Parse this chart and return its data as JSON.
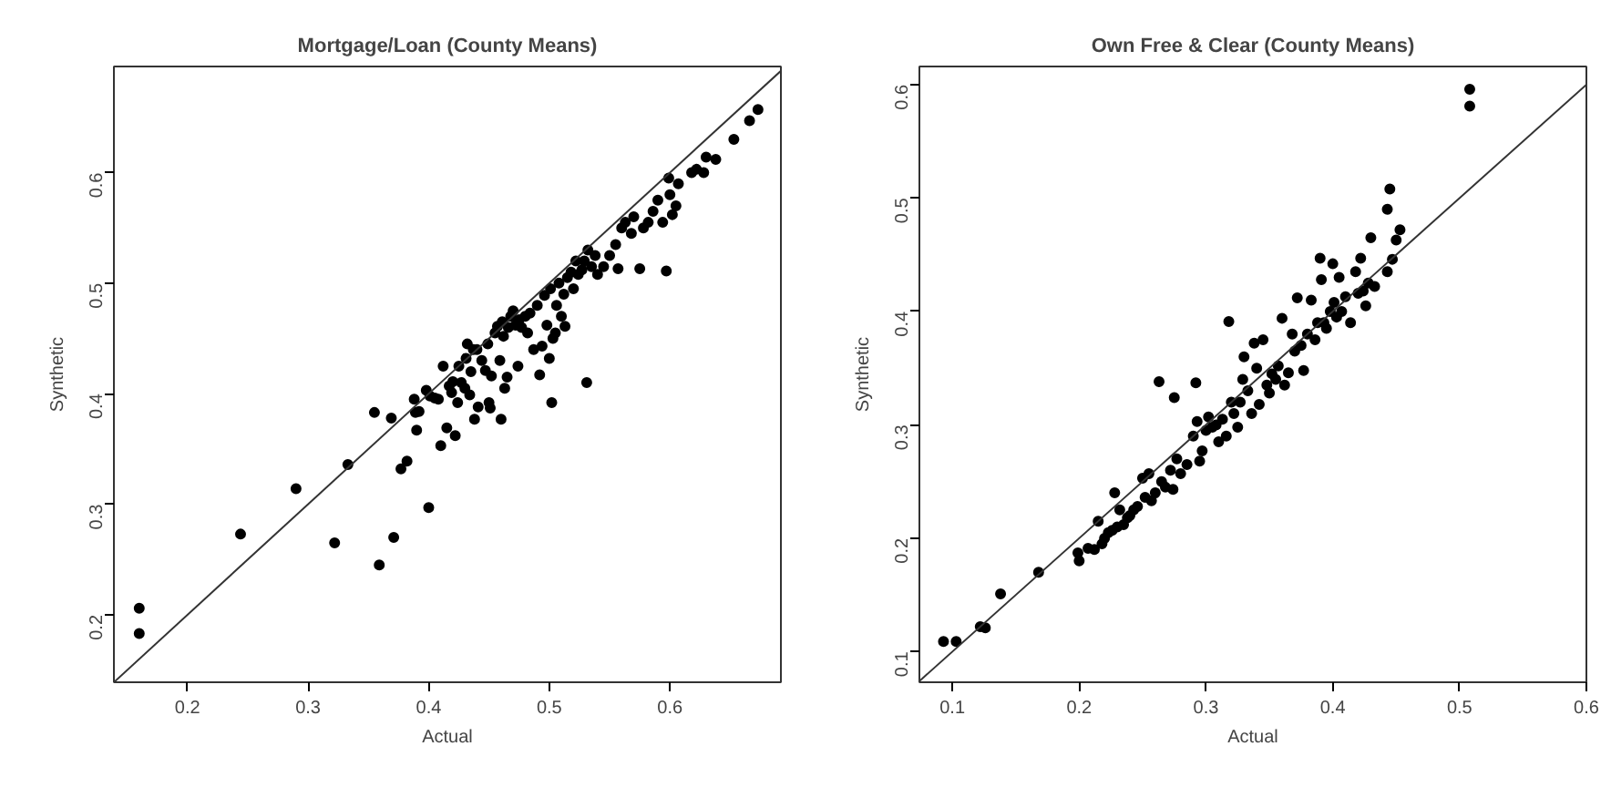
{
  "chart_data": [
    {
      "type": "scatter",
      "title": "Mortgage/Loan (County Means)",
      "xlabel": "Actual",
      "ylabel": "Synthetic",
      "xlim": [
        0.139,
        0.692
      ],
      "ylim": [
        0.139,
        0.696
      ],
      "xticks": [
        0.2,
        0.3,
        0.4,
        0.5,
        0.6
      ],
      "yticks": [
        0.2,
        0.3,
        0.4,
        0.5,
        0.6
      ],
      "grid": false,
      "series": [
        {
          "type": "scatter",
          "marker": "circle",
          "color": "#000000",
          "x": [
            0.16,
            0.16,
            0.244,
            0.29,
            0.322,
            0.333,
            0.355,
            0.359,
            0.369,
            0.371,
            0.377,
            0.382,
            0.388,
            0.389,
            0.39,
            0.392,
            0.398,
            0.4,
            0.401,
            0.405,
            0.408,
            0.41,
            0.412,
            0.415,
            0.417,
            0.419,
            0.42,
            0.422,
            0.424,
            0.425,
            0.427,
            0.43,
            0.431,
            0.432,
            0.434,
            0.435,
            0.437,
            0.438,
            0.44,
            0.441,
            0.444,
            0.447,
            0.449,
            0.45,
            0.451,
            0.452,
            0.455,
            0.457,
            0.459,
            0.46,
            0.461,
            0.462,
            0.463,
            0.465,
            0.466,
            0.468,
            0.47,
            0.472,
            0.474,
            0.475,
            0.477,
            0.48,
            0.482,
            0.484,
            0.487,
            0.49,
            0.492,
            0.494,
            0.496,
            0.498,
            0.5,
            0.501,
            0.502,
            0.503,
            0.505,
            0.506,
            0.508,
            0.51,
            0.512,
            0.513,
            0.515,
            0.518,
            0.52,
            0.522,
            0.524,
            0.527,
            0.529,
            0.531,
            0.532,
            0.535,
            0.538,
            0.54,
            0.545,
            0.55,
            0.555,
            0.557,
            0.56,
            0.563,
            0.568,
            0.57,
            0.575,
            0.578,
            0.582,
            0.586,
            0.59,
            0.594,
            0.597,
            0.599,
            0.6,
            0.602,
            0.605,
            0.607,
            0.618,
            0.622,
            0.628,
            0.63,
            0.638,
            0.653,
            0.666,
            0.673
          ],
          "values": [
            0.206,
            0.183,
            0.273,
            0.314,
            0.265,
            0.336,
            0.383,
            0.245,
            0.378,
            0.27,
            0.332,
            0.339,
            0.395,
            0.383,
            0.367,
            0.384,
            0.403,
            0.297,
            0.398,
            0.396,
            0.395,
            0.353,
            0.425,
            0.369,
            0.407,
            0.401,
            0.411,
            0.362,
            0.392,
            0.425,
            0.41,
            0.405,
            0.432,
            0.445,
            0.399,
            0.42,
            0.44,
            0.377,
            0.44,
            0.388,
            0.43,
            0.421,
            0.445,
            0.392,
            0.387,
            0.416,
            0.455,
            0.461,
            0.43,
            0.377,
            0.465,
            0.452,
            0.405,
            0.415,
            0.46,
            0.47,
            0.475,
            0.462,
            0.425,
            0.467,
            0.46,
            0.47,
            0.455,
            0.473,
            0.44,
            0.48,
            0.417,
            0.443,
            0.489,
            0.462,
            0.432,
            0.495,
            0.392,
            0.45,
            0.455,
            0.48,
            0.5,
            0.47,
            0.49,
            0.461,
            0.505,
            0.51,
            0.495,
            0.52,
            0.508,
            0.512,
            0.52,
            0.41,
            0.53,
            0.515,
            0.525,
            0.508,
            0.515,
            0.525,
            0.535,
            0.513,
            0.55,
            0.555,
            0.545,
            0.56,
            0.513,
            0.55,
            0.555,
            0.565,
            0.575,
            0.555,
            0.511,
            0.595,
            0.58,
            0.562,
            0.57,
            0.59,
            0.6,
            0.603,
            0.6,
            0.614,
            0.612,
            0.63,
            0.647,
            0.657
          ]
        },
        {
          "type": "line",
          "color": "#333333",
          "x": [
            0.139,
            0.692
          ],
          "values": [
            0.139,
            0.692
          ]
        }
      ]
    },
    {
      "type": "scatter",
      "title": "Own Free & Clear (County Means)",
      "xlabel": "Actual",
      "ylabel": "Synthetic",
      "xlim": [
        0.074,
        0.6
      ],
      "ylim": [
        0.073,
        0.616
      ],
      "xticks": [
        0.1,
        0.2,
        0.3,
        0.4,
        0.5,
        0.6
      ],
      "yticks": [
        0.1,
        0.2,
        0.3,
        0.4,
        0.5,
        0.6
      ],
      "grid": false,
      "series": [
        {
          "type": "scatter",
          "marker": "circle",
          "color": "#000000",
          "x": [
            0.093,
            0.103,
            0.122,
            0.126,
            0.138,
            0.168,
            0.199,
            0.2,
            0.207,
            0.212,
            0.215,
            0.218,
            0.22,
            0.223,
            0.226,
            0.228,
            0.23,
            0.232,
            0.235,
            0.238,
            0.24,
            0.243,
            0.246,
            0.25,
            0.252,
            0.255,
            0.257,
            0.26,
            0.263,
            0.265,
            0.268,
            0.272,
            0.274,
            0.275,
            0.277,
            0.28,
            0.285,
            0.29,
            0.292,
            0.293,
            0.295,
            0.297,
            0.3,
            0.302,
            0.305,
            0.308,
            0.31,
            0.313,
            0.316,
            0.318,
            0.32,
            0.322,
            0.325,
            0.327,
            0.329,
            0.33,
            0.333,
            0.336,
            0.338,
            0.34,
            0.342,
            0.345,
            0.348,
            0.35,
            0.352,
            0.355,
            0.357,
            0.36,
            0.362,
            0.365,
            0.368,
            0.37,
            0.372,
            0.375,
            0.377,
            0.38,
            0.383,
            0.386,
            0.388,
            0.39,
            0.391,
            0.393,
            0.395,
            0.398,
            0.4,
            0.401,
            0.403,
            0.405,
            0.407,
            0.41,
            0.414,
            0.418,
            0.42,
            0.422,
            0.424,
            0.426,
            0.428,
            0.43,
            0.433,
            0.443,
            0.443,
            0.445,
            0.447,
            0.45,
            0.453,
            0.508,
            0.508
          ],
          "values": [
            0.109,
            0.109,
            0.122,
            0.121,
            0.151,
            0.17,
            0.187,
            0.18,
            0.191,
            0.19,
            0.215,
            0.195,
            0.2,
            0.205,
            0.207,
            0.24,
            0.21,
            0.225,
            0.212,
            0.218,
            0.22,
            0.225,
            0.228,
            0.253,
            0.236,
            0.257,
            0.233,
            0.24,
            0.338,
            0.25,
            0.245,
            0.26,
            0.243,
            0.324,
            0.27,
            0.257,
            0.265,
            0.29,
            0.337,
            0.303,
            0.268,
            0.277,
            0.295,
            0.307,
            0.298,
            0.3,
            0.285,
            0.305,
            0.29,
            0.391,
            0.32,
            0.31,
            0.298,
            0.32,
            0.34,
            0.36,
            0.33,
            0.31,
            0.372,
            0.35,
            0.318,
            0.375,
            0.335,
            0.328,
            0.345,
            0.34,
            0.352,
            0.394,
            0.335,
            0.346,
            0.38,
            0.365,
            0.412,
            0.37,
            0.348,
            0.38,
            0.41,
            0.375,
            0.39,
            0.447,
            0.428,
            0.39,
            0.385,
            0.4,
            0.442,
            0.408,
            0.395,
            0.43,
            0.4,
            0.413,
            0.39,
            0.435,
            0.416,
            0.447,
            0.418,
            0.405,
            0.425,
            0.465,
            0.422,
            0.49,
            0.435,
            0.508,
            0.446,
            0.463,
            0.472,
            0.596,
            0.581
          ]
        },
        {
          "type": "line",
          "color": "#333333",
          "x": [
            0.074,
            0.6
          ],
          "values": [
            0.074,
            0.6
          ]
        }
      ]
    }
  ]
}
